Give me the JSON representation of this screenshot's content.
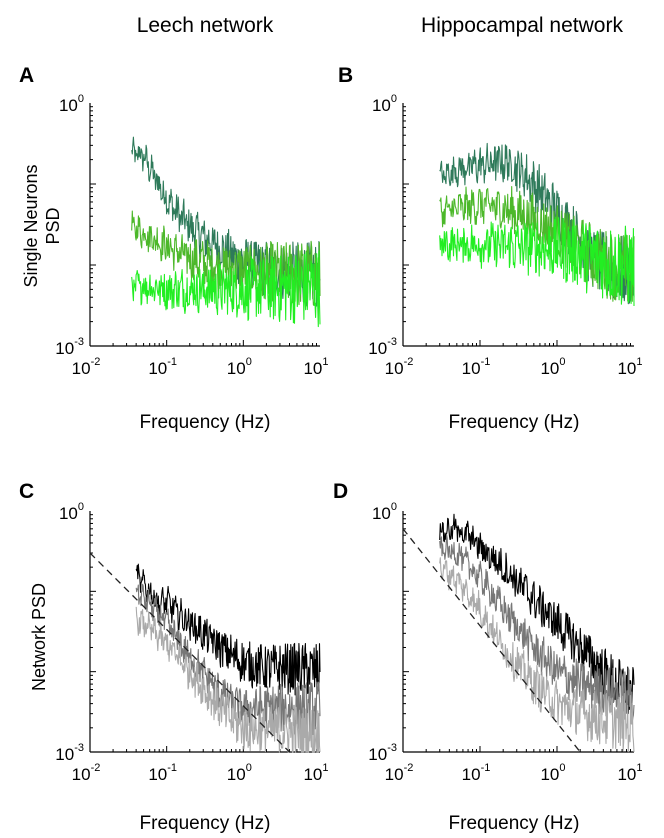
{
  "figure": {
    "column_titles": [
      "Leech network",
      "Hippocampal network"
    ]
  },
  "chart_data": [
    {
      "panel": "A",
      "type": "line",
      "scale": "log-log",
      "title": "",
      "xlabel": "Frequency (Hz)",
      "ylabel": [
        "Single Neurons",
        "PSD"
      ],
      "xlim": [
        0.01,
        10
      ],
      "ylim": [
        0.001,
        1
      ],
      "xticks": [
        {
          "base": "10",
          "exp": "-2"
        },
        {
          "base": "10",
          "exp": "-1"
        },
        {
          "base": "10",
          "exp": "0"
        },
        {
          "base": "10",
          "exp": "1"
        }
      ],
      "yticks": [
        {
          "base": "10",
          "exp": "-3"
        },
        {
          "base": "10",
          "exp": "0"
        }
      ],
      "series": [
        {
          "color": "#2e7a5a",
          "noise": 0.35,
          "points": [
            [
              0.035,
              0.24
            ],
            [
              0.05,
              0.22
            ],
            [
              0.07,
              0.12
            ],
            [
              0.1,
              0.065
            ],
            [
              0.15,
              0.04
            ],
            [
              0.2,
              0.03
            ],
            [
              0.3,
              0.022
            ],
            [
              0.5,
              0.016
            ],
            [
              0.8,
              0.012
            ],
            [
              1.0,
              0.011
            ],
            [
              2.0,
              0.009
            ],
            [
              5.0,
              0.008
            ],
            [
              10.0,
              0.0075
            ]
          ]
        },
        {
          "color": "#4cb82a",
          "noise": 0.38,
          "points": [
            [
              0.035,
              0.03
            ],
            [
              0.05,
              0.025
            ],
            [
              0.1,
              0.017
            ],
            [
              0.2,
              0.012
            ],
            [
              0.4,
              0.01
            ],
            [
              0.7,
              0.009
            ],
            [
              1.0,
              0.0085
            ],
            [
              3.0,
              0.008
            ],
            [
              10.0,
              0.0075
            ]
          ]
        },
        {
          "color": "#22ee22",
          "noise": 0.42,
          "points": [
            [
              0.035,
              0.0055
            ],
            [
              0.05,
              0.0055
            ],
            [
              0.1,
              0.005
            ],
            [
              0.3,
              0.005
            ],
            [
              1.0,
              0.005
            ],
            [
              3.0,
              0.0052
            ],
            [
              10.0,
              0.0055
            ]
          ]
        }
      ]
    },
    {
      "panel": "B",
      "type": "line",
      "scale": "log-log",
      "title": "",
      "xlabel": "Frequency (Hz)",
      "ylabel": [],
      "xlim": [
        0.01,
        10
      ],
      "ylim": [
        0.001,
        1
      ],
      "xticks": [
        {
          "base": "10",
          "exp": "-2"
        },
        {
          "base": "10",
          "exp": "-1"
        },
        {
          "base": "10",
          "exp": "0"
        },
        {
          "base": "10",
          "exp": "1"
        }
      ],
      "yticks": [
        {
          "base": "10",
          "exp": "-3"
        },
        {
          "base": "10",
          "exp": "0"
        }
      ],
      "series": [
        {
          "color": "#2e7a5a",
          "noise": 0.38,
          "points": [
            [
              0.03,
              0.12
            ],
            [
              0.05,
              0.15
            ],
            [
              0.1,
              0.17
            ],
            [
              0.2,
              0.19
            ],
            [
              0.3,
              0.16
            ],
            [
              0.5,
              0.1
            ],
            [
              1.0,
              0.045
            ],
            [
              2.0,
              0.02
            ],
            [
              3.0,
              0.012
            ],
            [
              5.0,
              0.009
            ],
            [
              10.0,
              0.008
            ]
          ]
        },
        {
          "color": "#4cb82a",
          "noise": 0.4,
          "points": [
            [
              0.03,
              0.045
            ],
            [
              0.05,
              0.05
            ],
            [
              0.1,
              0.055
            ],
            [
              0.2,
              0.05
            ],
            [
              0.4,
              0.04
            ],
            [
              0.7,
              0.03
            ],
            [
              1.0,
              0.025
            ],
            [
              2.0,
              0.016
            ],
            [
              4.0,
              0.011
            ],
            [
              10.0,
              0.008
            ]
          ]
        },
        {
          "color": "#22ee22",
          "noise": 0.45,
          "points": [
            [
              0.03,
              0.018
            ],
            [
              0.1,
              0.018
            ],
            [
              0.3,
              0.017
            ],
            [
              1.0,
              0.016
            ],
            [
              2.0,
              0.014
            ],
            [
              4.0,
              0.011
            ],
            [
              10.0,
              0.009
            ]
          ]
        }
      ]
    },
    {
      "panel": "C",
      "type": "line",
      "scale": "log-log",
      "title": "",
      "xlabel": "Frequency (Hz)",
      "ylabel": [
        "Network PSD"
      ],
      "xlim": [
        0.01,
        10
      ],
      "ylim": [
        0.001,
        1
      ],
      "xticks": [
        {
          "base": "10",
          "exp": "-2"
        },
        {
          "base": "10",
          "exp": "-1"
        },
        {
          "base": "10",
          "exp": "0"
        },
        {
          "base": "10",
          "exp": "1"
        }
      ],
      "yticks": [
        {
          "base": "10",
          "exp": "-3"
        },
        {
          "base": "10",
          "exp": "0"
        }
      ],
      "series": [
        {
          "color": "#000000",
          "noise": 0.3,
          "points": [
            [
              0.04,
              0.16
            ],
            [
              0.06,
              0.1
            ],
            [
              0.08,
              0.07
            ],
            [
              0.1,
              0.075
            ],
            [
              0.15,
              0.05
            ],
            [
              0.3,
              0.03
            ],
            [
              0.5,
              0.02
            ],
            [
              1.0,
              0.013
            ],
            [
              2.0,
              0.011
            ],
            [
              5.0,
              0.011
            ],
            [
              10.0,
              0.01
            ]
          ]
        },
        {
          "color": "#777777",
          "noise": 0.3,
          "points": [
            [
              0.04,
              0.1
            ],
            [
              0.06,
              0.07
            ],
            [
              0.1,
              0.04
            ],
            [
              0.2,
              0.015
            ],
            [
              0.4,
              0.007
            ],
            [
              0.7,
              0.004
            ],
            [
              1.0,
              0.0035
            ],
            [
              2.0,
              0.0035
            ],
            [
              5.0,
              0.0035
            ],
            [
              10.0,
              0.0035
            ]
          ]
        },
        {
          "color": "#aaaaaa",
          "noise": 0.32,
          "points": [
            [
              0.04,
              0.045
            ],
            [
              0.06,
              0.035
            ],
            [
              0.1,
              0.022
            ],
            [
              0.2,
              0.01
            ],
            [
              0.4,
              0.0045
            ],
            [
              0.7,
              0.0025
            ],
            [
              1.0,
              0.002
            ],
            [
              3.0,
              0.0018
            ],
            [
              10.0,
              0.0016
            ]
          ]
        },
        {
          "color": "#222222",
          "dash": "7 5",
          "noise": 0,
          "points": [
            [
              0.01,
              0.3
            ],
            [
              4.0,
              0.001
            ]
          ]
        }
      ]
    },
    {
      "panel": "D",
      "type": "line",
      "scale": "log-log",
      "title": "",
      "xlabel": "Frequency (Hz)",
      "ylabel": [],
      "xlim": [
        0.01,
        10
      ],
      "ylim": [
        0.001,
        1
      ],
      "xticks": [
        {
          "base": "10",
          "exp": "-2"
        },
        {
          "base": "10",
          "exp": "-1"
        },
        {
          "base": "10",
          "exp": "0"
        },
        {
          "base": "10",
          "exp": "1"
        }
      ],
      "yticks": [
        {
          "base": "10",
          "exp": "-3"
        },
        {
          "base": "10",
          "exp": "0"
        }
      ],
      "series": [
        {
          "color": "#000000",
          "noise": 0.3,
          "points": [
            [
              0.03,
              0.55
            ],
            [
              0.05,
              0.6
            ],
            [
              0.08,
              0.45
            ],
            [
              0.1,
              0.35
            ],
            [
              0.2,
              0.2
            ],
            [
              0.5,
              0.08
            ],
            [
              1.0,
              0.04
            ],
            [
              2.0,
              0.02
            ],
            [
              5.0,
              0.008
            ],
            [
              10.0,
              0.005
            ]
          ]
        },
        {
          "color": "#777777",
          "noise": 0.3,
          "points": [
            [
              0.03,
              0.35
            ],
            [
              0.05,
              0.3
            ],
            [
              0.1,
              0.15
            ],
            [
              0.2,
              0.06
            ],
            [
              0.5,
              0.02
            ],
            [
              1.0,
              0.01
            ],
            [
              2.0,
              0.007
            ],
            [
              5.0,
              0.0055
            ],
            [
              10.0,
              0.005
            ]
          ]
        },
        {
          "color": "#aaaaaa",
          "noise": 0.32,
          "points": [
            [
              0.03,
              0.2
            ],
            [
              0.05,
              0.14
            ],
            [
              0.1,
              0.06
            ],
            [
              0.2,
              0.02
            ],
            [
              0.5,
              0.007
            ],
            [
              1.0,
              0.004
            ],
            [
              2.0,
              0.003
            ],
            [
              5.0,
              0.0025
            ],
            [
              10.0,
              0.0022
            ]
          ]
        },
        {
          "color": "#222222",
          "dash": "7 5",
          "noise": 0,
          "points": [
            [
              0.01,
              0.6
            ],
            [
              2.0,
              0.001
            ]
          ]
        }
      ]
    }
  ]
}
